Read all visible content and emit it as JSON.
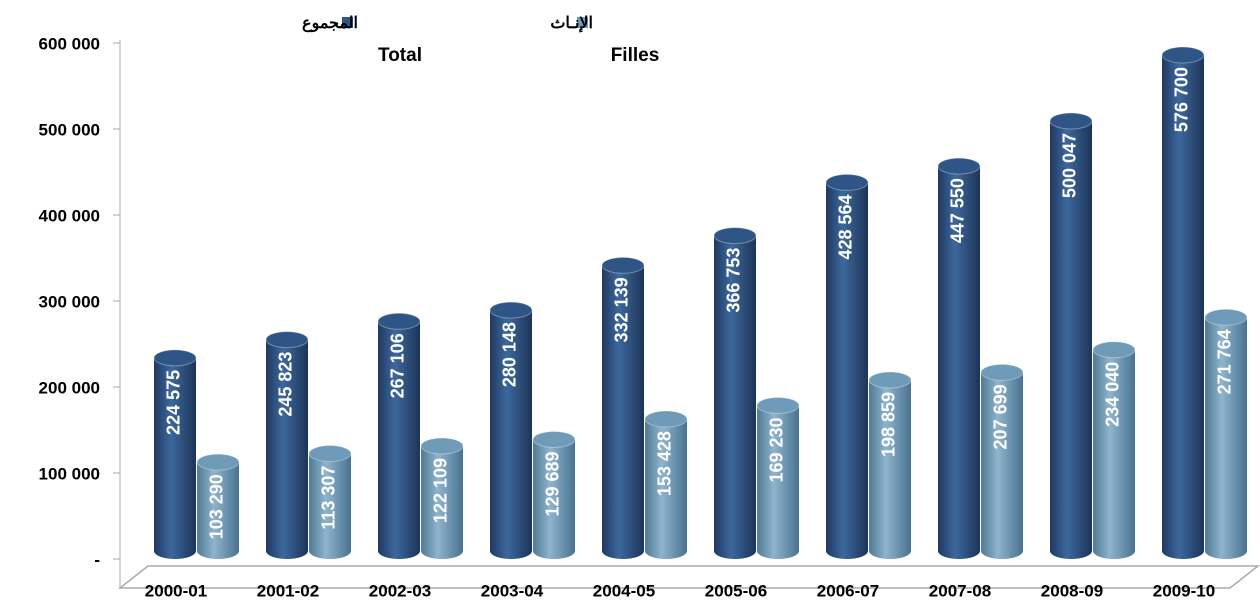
{
  "chart_data": {
    "type": "bar",
    "categories": [
      "2000-01",
      "2001-02",
      "2002-03",
      "2003-04",
      "2004-05",
      "2005-06",
      "2006-07",
      "2007-08",
      "2008-09",
      "2009-10"
    ],
    "series": [
      {
        "name": "Total",
        "name_ar": "المجموع",
        "color": "#2f5586",
        "values": [
          224575,
          245823,
          267106,
          280148,
          332139,
          366753,
          428564,
          447550,
          500047,
          576700
        ],
        "value_labels": [
          "224 575",
          "245 823",
          "267 106",
          "280 148",
          "332 139",
          "366 753",
          "428 564",
          "447 550",
          "500 047",
          "576 700"
        ]
      },
      {
        "name": "Filles",
        "name_ar": "الإنـاث",
        "color": "#6f9bb8",
        "values": [
          103290,
          113307,
          122109,
          129689,
          153428,
          169230,
          198859,
          207699,
          234040,
          271764
        ],
        "value_labels": [
          "103 290",
          "113 307",
          "122 109",
          "129 689",
          "153 428",
          "169 230",
          "198 859",
          "207 699",
          "234 040",
          "271 764"
        ]
      }
    ],
    "ylim": [
      0,
      600000
    ],
    "yticks": [
      {
        "value": 0,
        "label": "-"
      },
      {
        "value": 100000,
        "label": "100 000"
      },
      {
        "value": 200000,
        "label": "200 000"
      },
      {
        "value": 300000,
        "label": "300 000"
      },
      {
        "value": 400000,
        "label": "400 000"
      },
      {
        "value": 500000,
        "label": "500 000"
      },
      {
        "value": 600000,
        "label": "600 000"
      }
    ],
    "grid": false
  }
}
